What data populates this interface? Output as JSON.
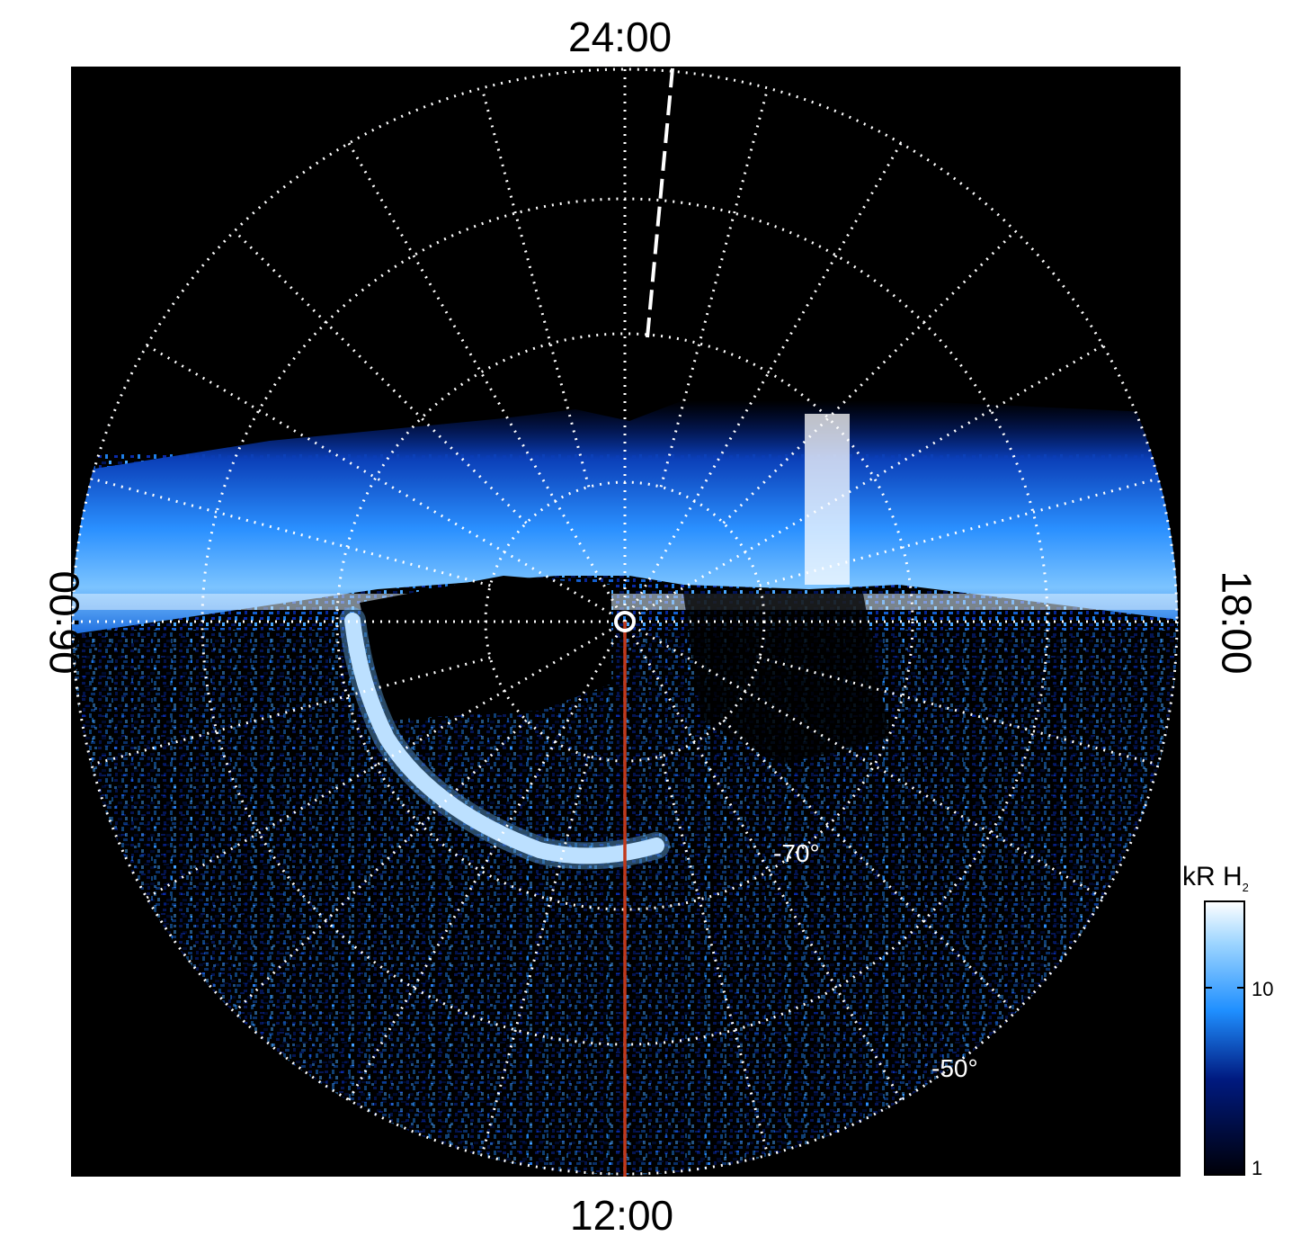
{
  "labels": {
    "top": "24:00",
    "bottom": "12:00",
    "left": "06:00",
    "right": "18:00"
  },
  "latitude_labels": [
    "-70°",
    "-50°"
  ],
  "colorbar": {
    "unit": "kR H",
    "unit_subscript": "2",
    "ticks": [
      "10",
      "1"
    ],
    "scale": "log"
  },
  "colors": {
    "background": "#000000",
    "grid": "#ffffff",
    "meridian_line": "#c0391b",
    "aurora_low": "#00105a",
    "aurora_mid": "#1f8fff",
    "aurora_high": "#ffffff"
  }
}
